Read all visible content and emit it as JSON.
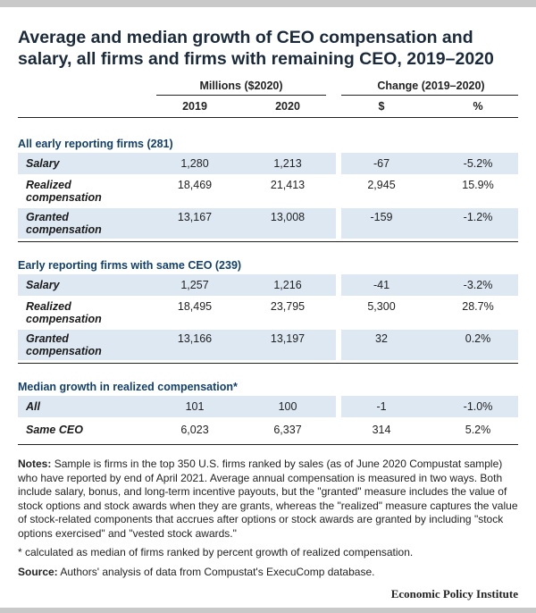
{
  "title": "Average and median growth of CEO compensation and salary, all firms and firms with remaining CEO, 2019–2020",
  "chart_data": {
    "type": "table",
    "group_headers": [
      "Millions ($2020)",
      "Change (2019–2020)"
    ],
    "column_headers": [
      "2019",
      "2020",
      "$",
      "%"
    ],
    "sections": [
      {
        "title": "All early reporting firms (281)",
        "rows": [
          {
            "label": "Salary",
            "values": [
              "1,280",
              "1,213",
              "-67",
              "-5.2%"
            ]
          },
          {
            "label": "Realized compensation",
            "values": [
              "18,469",
              "21,413",
              "2,945",
              "15.9%"
            ]
          },
          {
            "label": "Granted compensation",
            "values": [
              "13,167",
              "13,008",
              "-159",
              "-1.2%"
            ]
          }
        ]
      },
      {
        "title": "Early reporting firms with same CEO (239)",
        "rows": [
          {
            "label": "Salary",
            "values": [
              "1,257",
              "1,216",
              "-41",
              "-3.2%"
            ]
          },
          {
            "label": "Realized compensation",
            "values": [
              "18,495",
              "23,795",
              "5,300",
              "28.7%"
            ]
          },
          {
            "label": "Granted compensation",
            "values": [
              "13,166",
              "13,197",
              "32",
              "0.2%"
            ]
          }
        ]
      },
      {
        "title": "Median growth in realized compensation*",
        "rows": [
          {
            "label": "All",
            "values": [
              "101",
              "100",
              "-1",
              "-1.0%"
            ]
          },
          {
            "label": "Same CEO",
            "values": [
              "6,023",
              "6,337",
              "314",
              "5.2%"
            ]
          }
        ]
      }
    ]
  },
  "notes": {
    "label": "Notes:",
    "text": "Sample is firms in the top 350 U.S. firms ranked by sales (as of June 2020 Compustat sample) who have reported by end of April 2021. Average annual compensation is measured in two ways. Both include salary, bonus, and long-term incentive payouts, but the \"granted\" measure includes the value of stock options and stock awards when they are grants, whereas the \"realized\" measure captures the value of stock-related components that accrues after options or stock awards are granted by including \"stock options exercised\" and \"vested stock awards.\""
  },
  "footnote": "* calculated as median of firms ranked by percent growth of realized compensation.",
  "source": {
    "label": "Source:",
    "text": "Authors' analysis of data from Compustat's ExecuComp database."
  },
  "publisher": "Economic Policy Institute"
}
